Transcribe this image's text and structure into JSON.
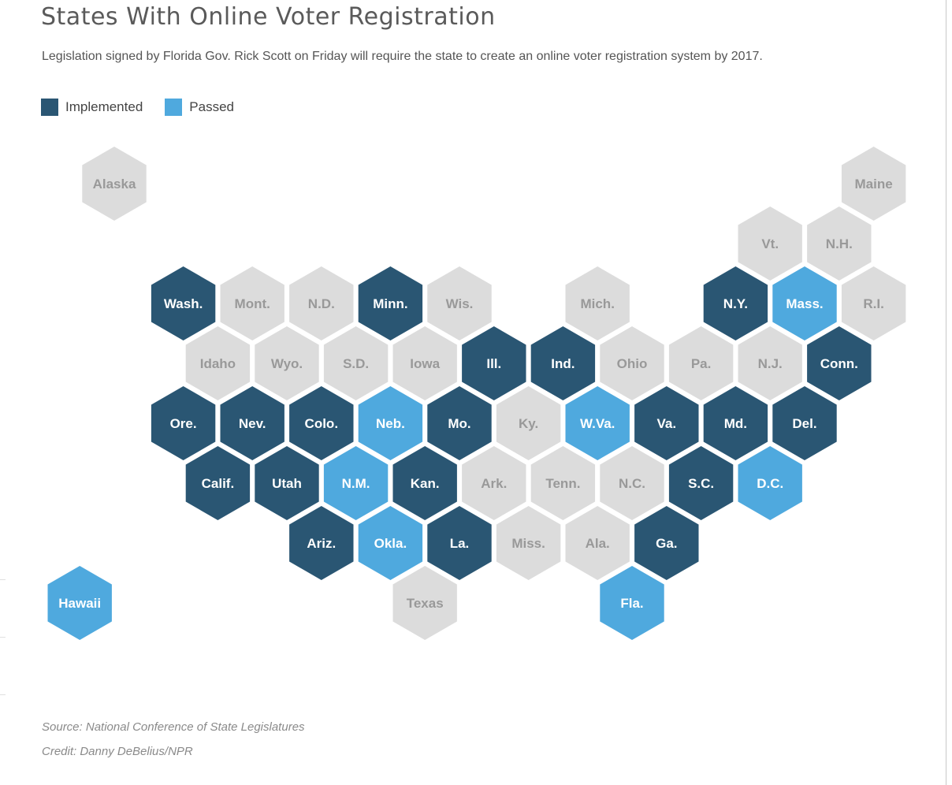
{
  "title": "States With Online Voter Registration",
  "subtitle": "Legislation signed by Florida Gov. Rick Scott on Friday will require the state to create an online voter registration system by 2017.",
  "legend": [
    {
      "label": "Implemented",
      "status": "implemented"
    },
    {
      "label": "Passed",
      "status": "passed"
    }
  ],
  "colors": {
    "implemented": "#2a5673",
    "passed": "#4fa9de",
    "none": "#dcdcdc",
    "label_dark": "#ffffff",
    "label_light": "#999999"
  },
  "states": [
    {
      "label": "Alaska",
      "status": "none",
      "row": 0,
      "col": 0
    },
    {
      "label": "Maine",
      "status": "none",
      "row": 0,
      "col": 11
    },
    {
      "label": "Vt.",
      "status": "none",
      "row": 1,
      "col": 9.5
    },
    {
      "label": "N.H.",
      "status": "none",
      "row": 1,
      "col": 10.5
    },
    {
      "label": "Wash.",
      "status": "implemented",
      "row": 2,
      "col": 1
    },
    {
      "label": "Mont.",
      "status": "none",
      "row": 2,
      "col": 2
    },
    {
      "label": "N.D.",
      "status": "none",
      "row": 2,
      "col": 3
    },
    {
      "label": "Minn.",
      "status": "implemented",
      "row": 2,
      "col": 4
    },
    {
      "label": "Wis.",
      "status": "none",
      "row": 2,
      "col": 5
    },
    {
      "label": "Mich.",
      "status": "none",
      "row": 2,
      "col": 7
    },
    {
      "label": "N.Y.",
      "status": "implemented",
      "row": 2,
      "col": 9
    },
    {
      "label": "Mass.",
      "status": "passed",
      "row": 2,
      "col": 10
    },
    {
      "label": "R.I.",
      "status": "none",
      "row": 2,
      "col": 11
    },
    {
      "label": "Idaho",
      "status": "none",
      "row": 3,
      "col": 1.5
    },
    {
      "label": "Wyo.",
      "status": "none",
      "row": 3,
      "col": 2.5
    },
    {
      "label": "S.D.",
      "status": "none",
      "row": 3,
      "col": 3.5
    },
    {
      "label": "Iowa",
      "status": "none",
      "row": 3,
      "col": 4.5
    },
    {
      "label": "Ill.",
      "status": "implemented",
      "row": 3,
      "col": 5.5
    },
    {
      "label": "Ind.",
      "status": "implemented",
      "row": 3,
      "col": 6.5
    },
    {
      "label": "Ohio",
      "status": "none",
      "row": 3,
      "col": 7.5
    },
    {
      "label": "Pa.",
      "status": "none",
      "row": 3,
      "col": 8.5
    },
    {
      "label": "N.J.",
      "status": "none",
      "row": 3,
      "col": 9.5
    },
    {
      "label": "Conn.",
      "status": "implemented",
      "row": 3,
      "col": 10.5
    },
    {
      "label": "Ore.",
      "status": "implemented",
      "row": 4,
      "col": 1
    },
    {
      "label": "Nev.",
      "status": "implemented",
      "row": 4,
      "col": 2
    },
    {
      "label": "Colo.",
      "status": "implemented",
      "row": 4,
      "col": 3
    },
    {
      "label": "Neb.",
      "status": "passed",
      "row": 4,
      "col": 4
    },
    {
      "label": "Mo.",
      "status": "implemented",
      "row": 4,
      "col": 5
    },
    {
      "label": "Ky.",
      "status": "none",
      "row": 4,
      "col": 6
    },
    {
      "label": "W.Va.",
      "status": "passed",
      "row": 4,
      "col": 7
    },
    {
      "label": "Va.",
      "status": "implemented",
      "row": 4,
      "col": 8
    },
    {
      "label": "Md.",
      "status": "implemented",
      "row": 4,
      "col": 9
    },
    {
      "label": "Del.",
      "status": "implemented",
      "row": 4,
      "col": 10
    },
    {
      "label": "Calif.",
      "status": "implemented",
      "row": 5,
      "col": 1.5
    },
    {
      "label": "Utah",
      "status": "implemented",
      "row": 5,
      "col": 2.5
    },
    {
      "label": "N.M.",
      "status": "passed",
      "row": 5,
      "col": 3.5
    },
    {
      "label": "Kan.",
      "status": "implemented",
      "row": 5,
      "col": 4.5
    },
    {
      "label": "Ark.",
      "status": "none",
      "row": 5,
      "col": 5.5
    },
    {
      "label": "Tenn.",
      "status": "none",
      "row": 5,
      "col": 6.5
    },
    {
      "label": "N.C.",
      "status": "none",
      "row": 5,
      "col": 7.5
    },
    {
      "label": "S.C.",
      "status": "implemented",
      "row": 5,
      "col": 8.5
    },
    {
      "label": "D.C.",
      "status": "passed",
      "row": 5,
      "col": 9.5
    },
    {
      "label": "Ariz.",
      "status": "implemented",
      "row": 6,
      "col": 3
    },
    {
      "label": "Okla.",
      "status": "passed",
      "row": 6,
      "col": 4
    },
    {
      "label": "La.",
      "status": "implemented",
      "row": 6,
      "col": 5
    },
    {
      "label": "Miss.",
      "status": "none",
      "row": 6,
      "col": 6
    },
    {
      "label": "Ala.",
      "status": "none",
      "row": 6,
      "col": 7
    },
    {
      "label": "Ga.",
      "status": "implemented",
      "row": 6,
      "col": 8
    },
    {
      "label": "Hawaii",
      "status": "passed",
      "row": 7,
      "col": -0.5
    },
    {
      "label": "Texas",
      "status": "none",
      "row": 7,
      "col": 4.5
    },
    {
      "label": "Fla.",
      "status": "passed",
      "row": 7,
      "col": 7.5
    }
  ],
  "source": "Source: National Conference of State Legislatures",
  "credit": "Credit: Danny DeBelius/NPR"
}
